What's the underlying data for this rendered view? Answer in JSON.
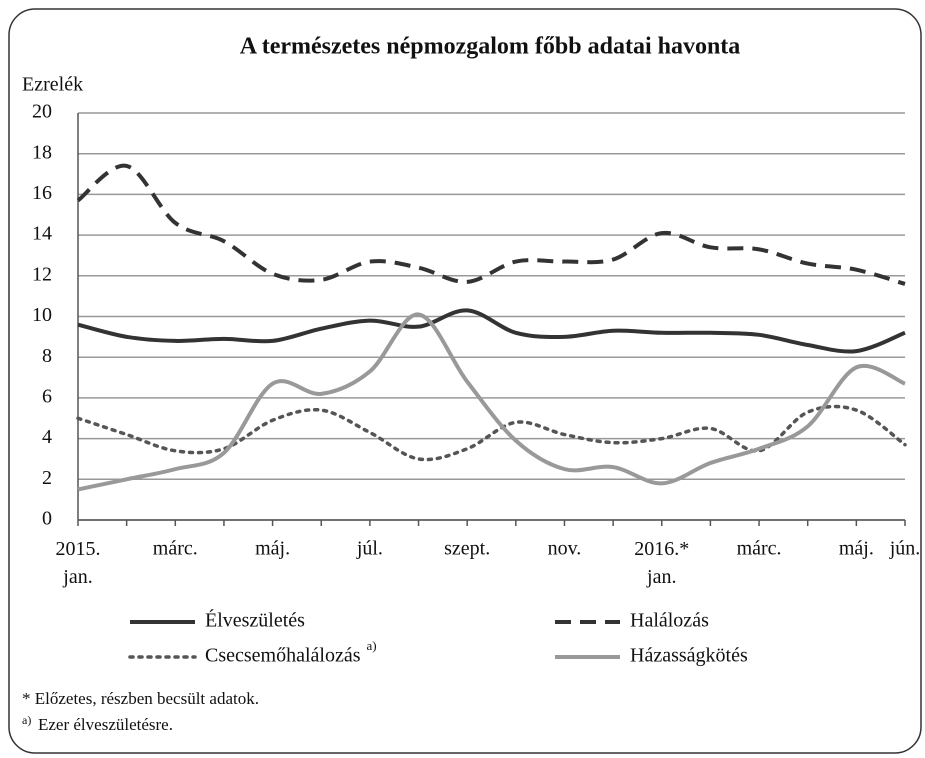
{
  "chart_data": {
    "type": "line",
    "title": "A természetes népmozgalom főbb adatai havonta",
    "y_label": "Ezrelék",
    "categories": [
      "2015. jan.",
      null,
      "márc.",
      null,
      "máj.",
      null,
      "júl.",
      null,
      "szept.",
      null,
      "nov.",
      null,
      "2016.* jan.",
      null,
      "márc.",
      null,
      "máj.",
      "jún."
    ],
    "ylim": [
      0,
      20
    ],
    "yticks": [
      0,
      2,
      4,
      6,
      8,
      10,
      12,
      14,
      16,
      18,
      20
    ],
    "grid": true,
    "series": [
      {
        "name": "Élveszületés",
        "color": "#333333",
        "style": "solid",
        "values": [
          9.6,
          9.0,
          8.8,
          8.9,
          8.8,
          9.4,
          9.8,
          9.5,
          10.3,
          9.2,
          9.0,
          9.3,
          9.2,
          9.2,
          9.1,
          8.6,
          8.3,
          9.2
        ]
      },
      {
        "name": "Halálozás",
        "color": "#333333",
        "style": "dashed",
        "values": [
          15.7,
          17.4,
          14.6,
          13.7,
          12.1,
          11.8,
          12.7,
          12.4,
          11.7,
          12.7,
          12.7,
          12.8,
          14.1,
          13.4,
          13.3,
          12.6,
          12.3,
          11.6
        ]
      },
      {
        "name": "Csecsemőhalálozás",
        "note_marker": "a)",
        "color": "#555555",
        "style": "dotted",
        "values": [
          5.0,
          4.2,
          3.4,
          3.5,
          4.9,
          5.4,
          4.3,
          3.0,
          3.5,
          4.8,
          4.2,
          3.8,
          4.0,
          4.5,
          3.4,
          5.3,
          5.4,
          3.7
        ]
      },
      {
        "name": "Házasságkötés",
        "color": "#999999",
        "style": "solid",
        "values": [
          1.5,
          2.0,
          2.5,
          3.3,
          6.7,
          6.2,
          7.3,
          10.1,
          6.8,
          3.9,
          2.5,
          2.6,
          1.8,
          2.8,
          3.5,
          4.6,
          7.5,
          6.7
        ]
      }
    ],
    "notes": [
      {
        "text": "* Előzetes, részben becsült adatok."
      },
      {
        "marker": "a)",
        "text": "Ezer élveszületésre."
      }
    ]
  }
}
